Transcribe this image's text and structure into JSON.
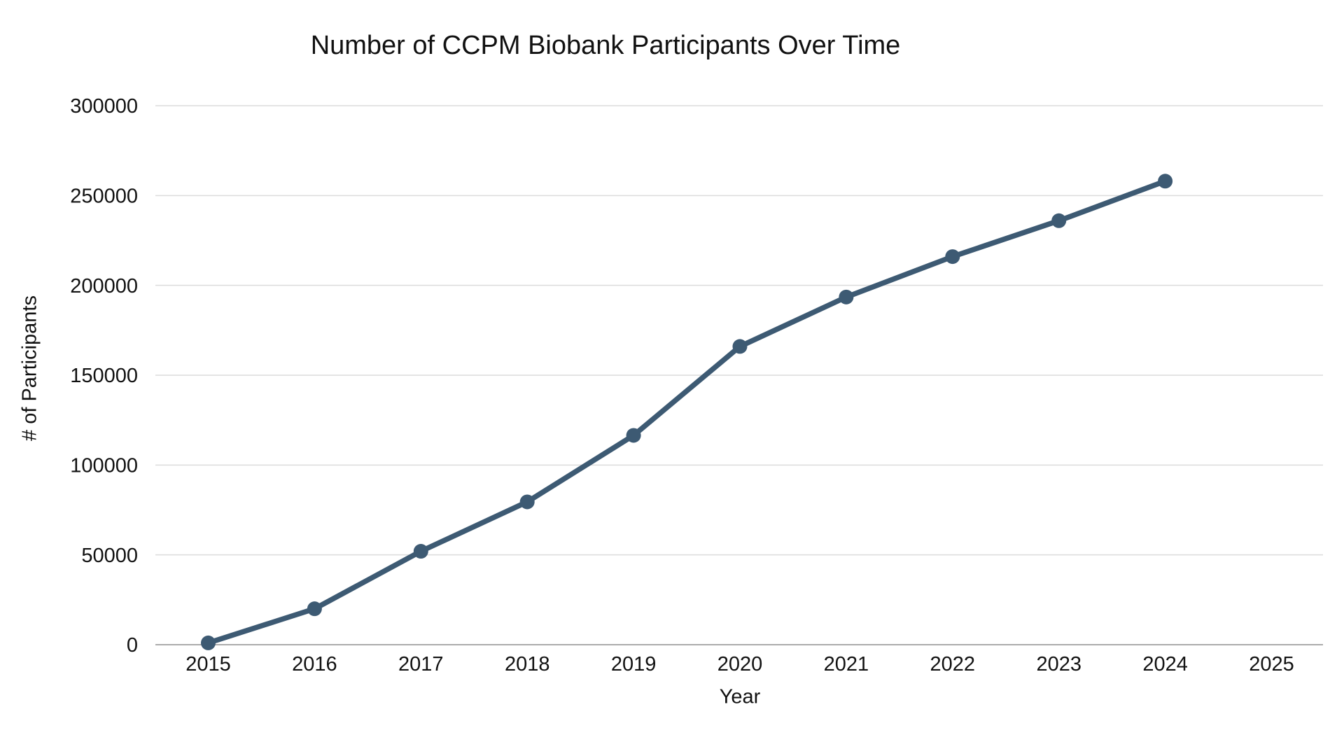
{
  "page": {
    "background": "#ffffff"
  },
  "chart_data": {
    "type": "line",
    "title": "Number of CCPM Biobank Participants Over Time",
    "xlabel": "Year",
    "ylabel": "# of Participants",
    "x": [
      2015,
      2016,
      2017,
      2018,
      2019,
      2020,
      2021,
      2022,
      2023,
      2024
    ],
    "series": [
      {
        "name": "CCPM Biobank Participants",
        "values": [
          1000,
          20000,
          52000,
          79500,
          116500,
          166000,
          193500,
          216000,
          236000,
          258000
        ]
      }
    ],
    "x_ticks": [
      "2015",
      "2016",
      "2017",
      "2018",
      "2019",
      "2020",
      "2021",
      "2022",
      "2023",
      "2024",
      "2025"
    ],
    "x_tick_years": [
      2015,
      2016,
      2017,
      2018,
      2019,
      2020,
      2021,
      2022,
      2023,
      2024,
      2025
    ],
    "y_ticks": [
      0,
      50000,
      100000,
      150000,
      200000,
      250000,
      300000
    ],
    "xlim": [
      2015,
      2025
    ],
    "ylim": [
      0,
      300000
    ],
    "grid": "horizontal",
    "legend": false,
    "colors": {
      "line": "#3d5a73",
      "marker": "#3d5a73",
      "gridline": "#dcdcdc",
      "axis_line": "#8f8f8f",
      "text": "#111111"
    }
  }
}
